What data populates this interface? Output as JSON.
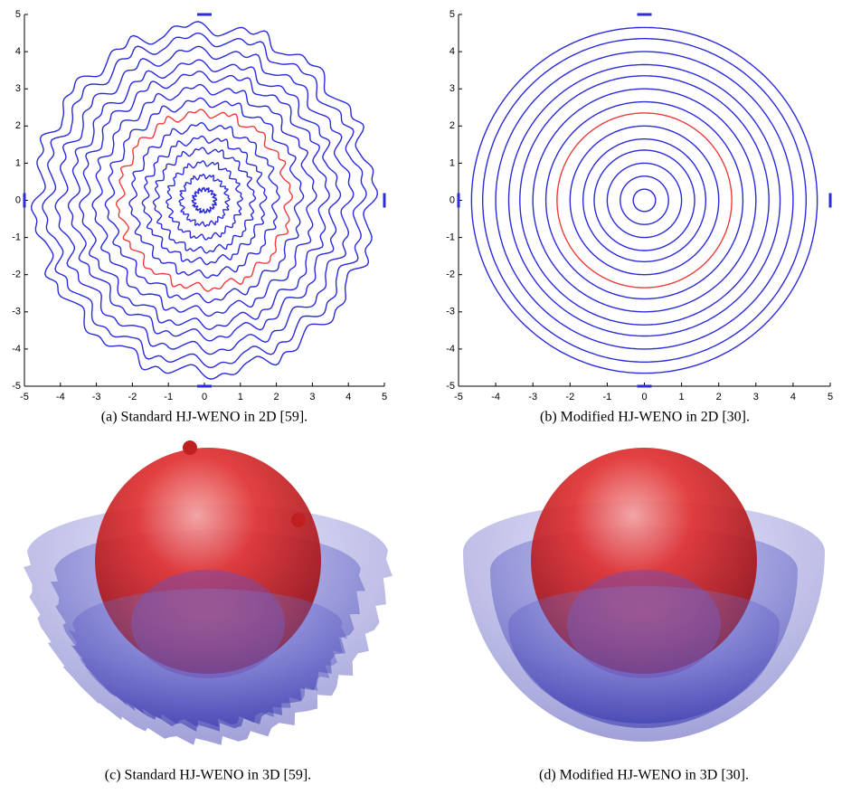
{
  "chart_data": [
    {
      "type": "contour",
      "xlim": [
        -5,
        5
      ],
      "ylim": [
        -5,
        5
      ],
      "xticks": [
        -5,
        -4,
        -3,
        -2,
        -1,
        0,
        1,
        2,
        3,
        4,
        5
      ],
      "yticks": [
        -5,
        -4,
        -3,
        -2,
        -1,
        0,
        1,
        2,
        3,
        4,
        5
      ],
      "contour_radii": [
        0.3,
        0.65,
        1.0,
        1.35,
        1.65,
        2.0,
        2.35,
        2.65,
        3.0,
        3.35,
        3.65,
        4.0,
        4.35,
        4.65
      ],
      "highlight_index": 6,
      "color": "#2b2bdc",
      "highlight_color": "#f03c3c",
      "jagged": true,
      "caption": "(a) Standard HJ-WENO in 2D [59]."
    },
    {
      "type": "contour",
      "xlim": [
        -5,
        5
      ],
      "ylim": [
        -5,
        5
      ],
      "xticks": [
        -5,
        -4,
        -3,
        -2,
        -1,
        0,
        1,
        2,
        3,
        4,
        5
      ],
      "yticks": [
        -5,
        -4,
        -3,
        -2,
        -1,
        0,
        1,
        2,
        3,
        4,
        5
      ],
      "contour_radii": [
        0.3,
        0.65,
        1.0,
        1.35,
        1.65,
        2.0,
        2.35,
        2.65,
        3.0,
        3.35,
        3.65,
        4.0,
        4.35,
        4.65
      ],
      "highlight_index": 6,
      "color": "#2b2bdc",
      "highlight_color": "#f03c3c",
      "jagged": false,
      "caption": "(b) Modified HJ-WENO in 2D [30]."
    }
  ],
  "panels_3d": [
    {
      "caption": "(c) Standard HJ-WENO in 3D [59].",
      "jagged": true
    },
    {
      "caption": "(d) Modified HJ-WENO in 3D [30].",
      "jagged": false
    }
  ]
}
